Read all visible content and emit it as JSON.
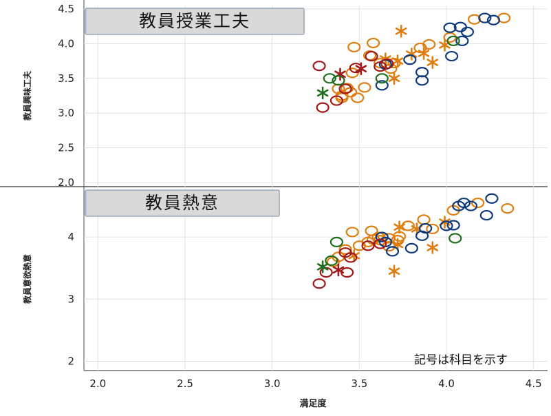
{
  "chart_data": {
    "type": "scatter",
    "xlabel": "満足度",
    "xlim": [
      1.92,
      4.58
    ],
    "x_ticks": [
      "2.0",
      "2.5",
      "3.0",
      "3.5",
      "4.0",
      "4.5"
    ],
    "x_tick_values": [
      2.0,
      2.5,
      3.0,
      3.5,
      4.0,
      4.5
    ],
    "note": "記号は科目を示す",
    "panels": [
      {
        "title": "教員授業工夫",
        "ylabel": "教員興味工夫",
        "ylim": [
          1.95,
          4.55
        ],
        "y_ticks": [
          "2.0",
          "2.5",
          "3.0",
          "3.5",
          "4.0",
          "4.5"
        ],
        "y_tick_values": [
          2.0,
          2.5,
          3.0,
          3.5,
          4.0,
          4.5
        ],
        "series": [
          {
            "color": "#e07d10",
            "marker": "circle",
            "points": [
              [
                3.47,
                3.95
              ],
              [
                3.58,
                4.01
              ],
              [
                3.62,
                3.72
              ],
              [
                3.85,
                3.94
              ],
              [
                3.9,
                3.99
              ],
              [
                3.43,
                3.36
              ],
              [
                3.49,
                3.22
              ],
              [
                3.4,
                3.22
              ],
              [
                3.45,
                3.3
              ],
              [
                3.56,
                3.83
              ],
              [
                3.68,
                3.64
              ],
              [
                3.7,
                3.72
              ],
              [
                3.38,
                3.35
              ],
              [
                3.53,
                3.37
              ],
              [
                4.16,
                4.35
              ],
              [
                4.33,
                4.37
              ],
              [
                4.02,
                4.09
              ],
              [
                3.46,
                3.58
              ],
              [
                3.4,
                3.25
              ]
            ]
          },
          {
            "color": "#e07d10",
            "marker": "star",
            "points": [
              [
                3.74,
                4.18
              ],
              [
                3.72,
                3.75
              ],
              [
                3.87,
                3.86
              ],
              [
                3.92,
                3.73
              ],
              [
                3.99,
                3.98
              ],
              [
                3.8,
                3.85
              ],
              [
                3.7,
                3.5
              ],
              [
                3.65,
                3.78
              ]
            ]
          },
          {
            "color": "#0f3a7a",
            "marker": "circle",
            "points": [
              [
                3.65,
                3.7
              ],
              [
                3.79,
                3.77
              ],
              [
                3.86,
                3.47
              ],
              [
                4.02,
                4.23
              ],
              [
                4.08,
                4.24
              ],
              [
                4.12,
                4.17
              ],
              [
                4.22,
                4.37
              ],
              [
                4.27,
                4.34
              ],
              [
                4.09,
                4.04
              ],
              [
                4.03,
                3.82
              ],
              [
                3.63,
                3.4
              ],
              [
                3.86,
                3.59
              ]
            ]
          },
          {
            "color": "#a01818",
            "marker": "circle",
            "points": [
              [
                3.27,
                3.68
              ],
              [
                3.29,
                3.08
              ],
              [
                3.37,
                3.18
              ],
              [
                3.42,
                3.35
              ],
              [
                3.48,
                3.65
              ],
              [
                3.57,
                3.82
              ],
              [
                3.62,
                3.67
              ],
              [
                3.66,
                3.71
              ]
            ]
          },
          {
            "color": "#a01818",
            "marker": "star",
            "points": [
              [
                3.39,
                3.56
              ],
              [
                3.51,
                3.64
              ]
            ]
          },
          {
            "color": "#1d6e1d",
            "marker": "circle",
            "points": [
              [
                3.33,
                3.5
              ],
              [
                3.38,
                3.47
              ],
              [
                3.63,
                3.5
              ],
              [
                4.04,
                4.04
              ]
            ]
          },
          {
            "color": "#1d6e1d",
            "marker": "star",
            "points": [
              [
                3.29,
                3.29
              ]
            ]
          }
        ]
      },
      {
        "title": "教員熱意",
        "ylabel": "教員意欲熱意",
        "ylim": [
          1.85,
          4.8
        ],
        "y_ticks": [
          "2",
          "3",
          "4"
        ],
        "y_tick_values": [
          2,
          3,
          4
        ],
        "series": [
          {
            "color": "#e07d10",
            "marker": "circle",
            "points": [
              [
                3.46,
                4.08
              ],
              [
                3.55,
                3.92
              ],
              [
                3.57,
                4.1
              ],
              [
                3.62,
                3.95
              ],
              [
                3.67,
                3.85
              ],
              [
                3.72,
                3.95
              ],
              [
                3.78,
                4.18
              ],
              [
                3.87,
                4.28
              ],
              [
                3.92,
                4.13
              ],
              [
                4.04,
                4.43
              ],
              [
                4.18,
                4.55
              ],
              [
                4.35,
                4.46
              ],
              [
                3.38,
                3.68
              ],
              [
                3.42,
                3.8
              ],
              [
                3.35,
                3.6
              ],
              [
                3.5,
                3.86
              ],
              [
                3.58,
                3.96
              ],
              [
                3.61,
                4.0
              ],
              [
                3.67,
                3.98
              ],
              [
                3.73,
                4.01
              ]
            ]
          },
          {
            "color": "#e07d10",
            "marker": "star",
            "points": [
              [
                3.73,
                4.16
              ],
              [
                3.83,
                4.13
              ],
              [
                3.92,
                3.83
              ],
              [
                3.99,
                4.24
              ],
              [
                3.7,
                3.45
              ],
              [
                3.47,
                3.7
              ],
              [
                3.72,
                3.88
              ]
            ]
          },
          {
            "color": "#0f3a7a",
            "marker": "circle",
            "points": [
              [
                3.63,
                4.0
              ],
              [
                3.69,
                3.77
              ],
              [
                3.8,
                3.82
              ],
              [
                3.86,
                4.02
              ],
              [
                3.88,
                4.14
              ],
              [
                4.0,
                4.18
              ],
              [
                4.04,
                4.19
              ],
              [
                4.07,
                4.5
              ],
              [
                4.1,
                4.55
              ],
              [
                4.14,
                4.5
              ],
              [
                4.23,
                4.35
              ],
              [
                4.26,
                4.62
              ],
              [
                3.65,
                3.92
              ]
            ]
          },
          {
            "color": "#a01818",
            "marker": "circle",
            "points": [
              [
                3.27,
                3.25
              ],
              [
                3.31,
                3.43
              ],
              [
                3.43,
                3.43
              ],
              [
                3.45,
                3.67
              ],
              [
                3.42,
                3.75
              ],
              [
                3.55,
                3.86
              ],
              [
                3.62,
                3.89
              ]
            ]
          },
          {
            "color": "#a01818",
            "marker": "star",
            "points": [
              [
                3.38,
                3.47
              ]
            ]
          },
          {
            "color": "#1d6e1d",
            "marker": "circle",
            "points": [
              [
                3.37,
                3.92
              ],
              [
                3.34,
                3.62
              ],
              [
                4.05,
                3.98
              ]
            ]
          },
          {
            "color": "#1d6e1d",
            "marker": "star",
            "points": [
              [
                3.29,
                3.52
              ]
            ]
          }
        ]
      }
    ]
  }
}
